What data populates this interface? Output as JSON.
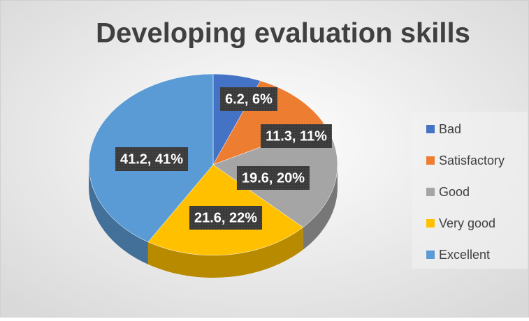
{
  "chart_data": {
    "type": "pie",
    "title": "Developing evaluation skills",
    "categories": [
      "Bad",
      "Satisfactory",
      "Good",
      "Very good",
      "Excellent"
    ],
    "values": [
      6.2,
      11.3,
      19.6,
      21.6,
      41.2
    ],
    "value_labels": [
      "6.2, 6%",
      "11.3, 11%",
      "19.6, 20%",
      "21.6, 22%",
      "41.2, 41%"
    ],
    "colors": [
      "#4472c4",
      "#ed7d31",
      "#a5a5a5",
      "#ffc000",
      "#5b9bd5"
    ],
    "legend": "right"
  }
}
